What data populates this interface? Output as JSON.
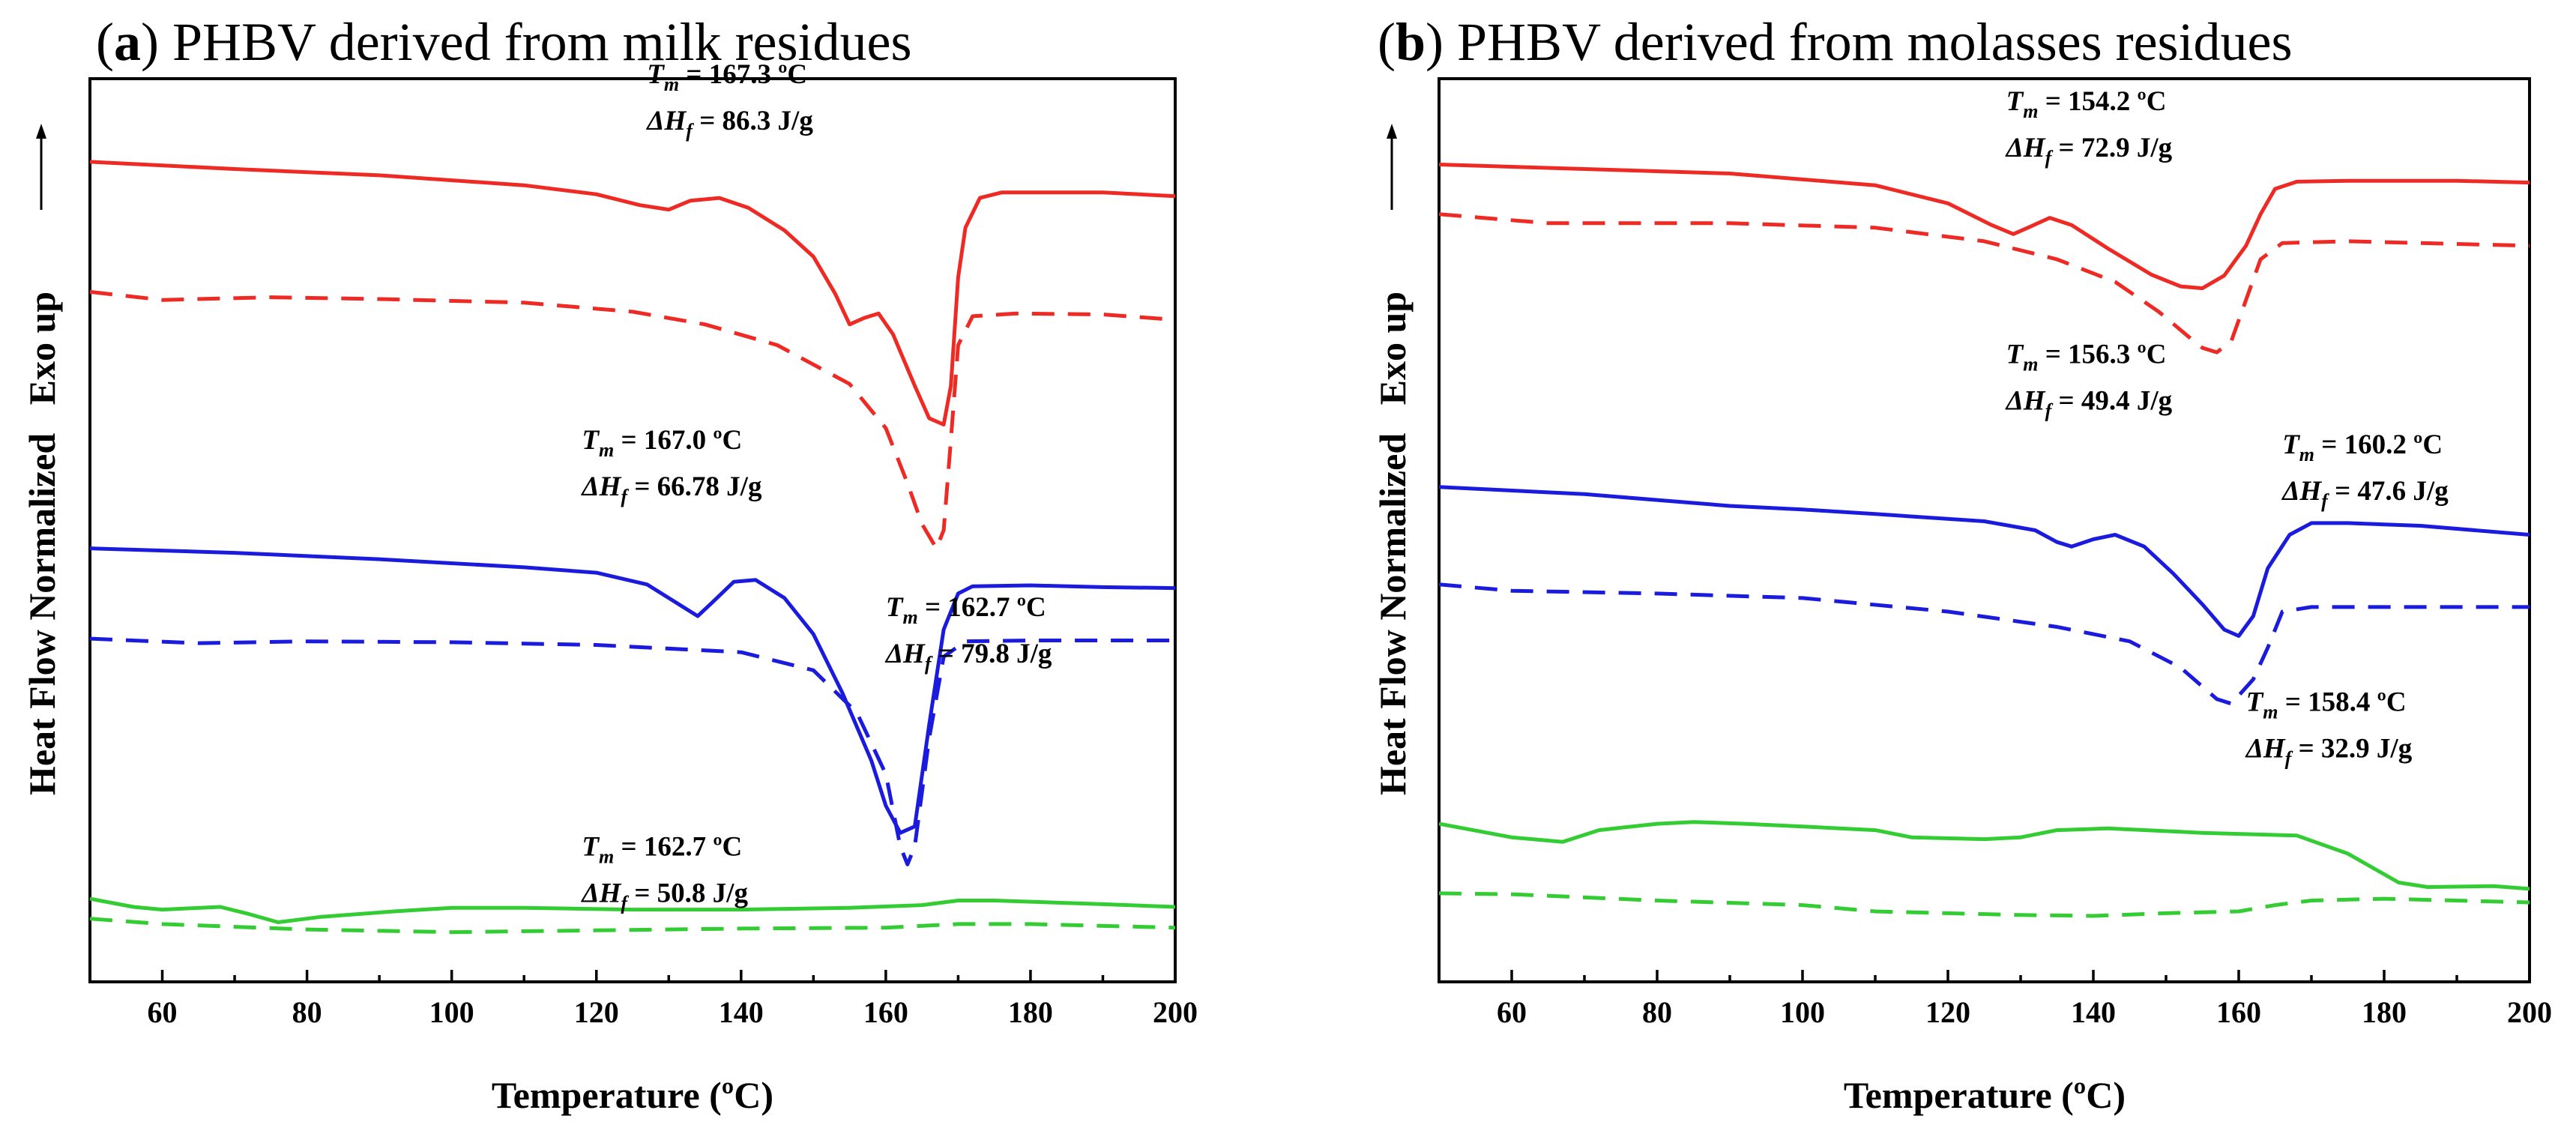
{
  "chart_data": [
    {
      "type": "line",
      "panel_letter": "a",
      "title_rest": ") PHBV derived from milk residues",
      "xlabel": "Temperature (ºC)",
      "ylabel": "Heat Flow Normalized   Exo up",
      "xlim": [
        50,
        200
      ],
      "ylim": [
        0,
        1
      ],
      "y_ticks_shown": false,
      "x_ticks": [
        60,
        80,
        100,
        120,
        140,
        160,
        180,
        200
      ],
      "colors": {
        "red": "#ee2a25",
        "blue": "#1b1bdd",
        "green": "#33cc33"
      },
      "series": [
        {
          "name": "red-solid",
          "color": "red",
          "dash": false,
          "points": [
            [
              50,
              0.908
            ],
            [
              70,
              0.9
            ],
            [
              90,
              0.893
            ],
            [
              110,
              0.882
            ],
            [
              120,
              0.872
            ],
            [
              126,
              0.86
            ],
            [
              130,
              0.855
            ],
            [
              133,
              0.865
            ],
            [
              137,
              0.868
            ],
            [
              141,
              0.857
            ],
            [
              146,
              0.832
            ],
            [
              150,
              0.803
            ],
            [
              153,
              0.762
            ],
            [
              155,
              0.728
            ],
            [
              157,
              0.735
            ],
            [
              159,
              0.74
            ],
            [
              161,
              0.717
            ],
            [
              164,
              0.66
            ],
            [
              166,
              0.624
            ],
            [
              168,
              0.617
            ],
            [
              169,
              0.66
            ],
            [
              170,
              0.78
            ],
            [
              171,
              0.835
            ],
            [
              173,
              0.868
            ],
            [
              176,
              0.874
            ],
            [
              190,
              0.874
            ],
            [
              200,
              0.87
            ]
          ]
        },
        {
          "name": "red-dashed",
          "color": "red",
          "dash": true,
          "points": [
            [
              50,
              0.764
            ],
            [
              60,
              0.755
            ],
            [
              75,
              0.758
            ],
            [
              90,
              0.756
            ],
            [
              110,
              0.752
            ],
            [
              125,
              0.742
            ],
            [
              135,
              0.728
            ],
            [
              145,
              0.705
            ],
            [
              155,
              0.662
            ],
            [
              160,
              0.613
            ],
            [
              163,
              0.552
            ],
            [
              165,
              0.507
            ],
            [
              167,
              0.48
            ],
            [
              168,
              0.5
            ],
            [
              169,
              0.6
            ],
            [
              170,
              0.705
            ],
            [
              172,
              0.737
            ],
            [
              178,
              0.74
            ],
            [
              190,
              0.739
            ],
            [
              200,
              0.733
            ]
          ]
        },
        {
          "name": "blue-solid",
          "color": "blue",
          "dash": false,
          "points": [
            [
              50,
              0.48
            ],
            [
              70,
              0.475
            ],
            [
              90,
              0.468
            ],
            [
              110,
              0.459
            ],
            [
              120,
              0.453
            ],
            [
              127,
              0.44
            ],
            [
              131,
              0.42
            ],
            [
              134,
              0.405
            ],
            [
              136,
              0.42
            ],
            [
              139,
              0.443
            ],
            [
              142,
              0.445
            ],
            [
              146,
              0.425
            ],
            [
              150,
              0.385
            ],
            [
              154,
              0.32
            ],
            [
              158,
              0.245
            ],
            [
              160,
              0.195
            ],
            [
              162,
              0.165
            ],
            [
              164,
              0.172
            ],
            [
              166,
              0.285
            ],
            [
              168,
              0.39
            ],
            [
              170,
              0.43
            ],
            [
              172,
              0.438
            ],
            [
              180,
              0.439
            ],
            [
              190,
              0.437
            ],
            [
              200,
              0.436
            ]
          ]
        },
        {
          "name": "blue-dashed",
          "color": "blue",
          "dash": true,
          "points": [
            [
              50,
              0.38
            ],
            [
              65,
              0.375
            ],
            [
              80,
              0.377
            ],
            [
              100,
              0.376
            ],
            [
              120,
              0.373
            ],
            [
              140,
              0.365
            ],
            [
              150,
              0.345
            ],
            [
              156,
              0.298
            ],
            [
              160,
              0.23
            ],
            [
              162,
              0.15
            ],
            [
              163,
              0.13
            ],
            [
              164,
              0.15
            ],
            [
              166,
              0.27
            ],
            [
              168,
              0.36
            ],
            [
              171,
              0.377
            ],
            [
              180,
              0.378
            ],
            [
              200,
              0.378
            ]
          ]
        },
        {
          "name": "green-solid",
          "color": "green",
          "dash": false,
          "points": [
            [
              50,
              0.092
            ],
            [
              56,
              0.083
            ],
            [
              60,
              0.08
            ],
            [
              68,
              0.083
            ],
            [
              72,
              0.075
            ],
            [
              76,
              0.066
            ],
            [
              82,
              0.072
            ],
            [
              92,
              0.078
            ],
            [
              100,
              0.082
            ],
            [
              110,
              0.082
            ],
            [
              125,
              0.08
            ],
            [
              140,
              0.08
            ],
            [
              155,
              0.082
            ],
            [
              165,
              0.085
            ],
            [
              170,
              0.09
            ],
            [
              175,
              0.09
            ],
            [
              190,
              0.086
            ],
            [
              200,
              0.083
            ]
          ]
        },
        {
          "name": "green-dashed",
          "color": "green",
          "dash": true,
          "points": [
            [
              50,
              0.07
            ],
            [
              60,
              0.064
            ],
            [
              80,
              0.058
            ],
            [
              100,
              0.055
            ],
            [
              120,
              0.057
            ],
            [
              140,
              0.059
            ],
            [
              160,
              0.06
            ],
            [
              170,
              0.064
            ],
            [
              180,
              0.064
            ],
            [
              200,
              0.06
            ]
          ]
        }
      ],
      "annotations": [
        {
          "tm_value": "= 167.3 ºC",
          "dh_value": "= 86.3 J/g",
          "x": 127,
          "y": 0.995
        },
        {
          "tm_value": "= 167.0 ºC",
          "dh_value": "= 66.78 J/g",
          "x": 118,
          "y": 0.59
        },
        {
          "tm_value": "= 162.7 ºC",
          "dh_value": "= 79.8 J/g",
          "x": 160,
          "y": 0.405
        },
        {
          "tm_value": "= 162.7 ºC",
          "dh_value": "= 50.8 J/g",
          "x": 118,
          "y": 0.14
        }
      ]
    },
    {
      "type": "line",
      "panel_letter": "b",
      "title_rest": ") PHBV derived from molasses residues",
      "xlabel": "Temperature (ºC)",
      "ylabel": "Heat Flow Normalized   Exo up",
      "xlim": [
        50,
        200
      ],
      "ylim": [
        0,
        1
      ],
      "y_ticks_shown": false,
      "x_ticks": [
        60,
        80,
        100,
        120,
        140,
        160,
        180,
        200
      ],
      "colors": {
        "red": "#ee2a25",
        "blue": "#1b1bdd",
        "green": "#33cc33"
      },
      "series": [
        {
          "name": "red-solid",
          "color": "red",
          "dash": false,
          "points": [
            [
              50,
              0.905
            ],
            [
              70,
              0.9
            ],
            [
              90,
              0.895
            ],
            [
              110,
              0.882
            ],
            [
              120,
              0.862
            ],
            [
              126,
              0.838
            ],
            [
              129,
              0.828
            ],
            [
              131,
              0.835
            ],
            [
              134,
              0.846
            ],
            [
              137,
              0.838
            ],
            [
              142,
              0.812
            ],
            [
              148,
              0.783
            ],
            [
              152,
              0.77
            ],
            [
              155,
              0.768
            ],
            [
              158,
              0.782
            ],
            [
              161,
              0.815
            ],
            [
              163,
              0.85
            ],
            [
              165,
              0.878
            ],
            [
              168,
              0.886
            ],
            [
              175,
              0.887
            ],
            [
              190,
              0.887
            ],
            [
              200,
              0.885
            ]
          ]
        },
        {
          "name": "red-dashed",
          "color": "red",
          "dash": true,
          "points": [
            [
              50,
              0.85
            ],
            [
              65,
              0.84
            ],
            [
              90,
              0.84
            ],
            [
              110,
              0.835
            ],
            [
              125,
              0.82
            ],
            [
              135,
              0.8
            ],
            [
              143,
              0.775
            ],
            [
              149,
              0.742
            ],
            [
              153,
              0.715
            ],
            [
              155,
              0.702
            ],
            [
              157,
              0.697
            ],
            [
              159,
              0.71
            ],
            [
              161,
              0.755
            ],
            [
              163,
              0.8
            ],
            [
              166,
              0.818
            ],
            [
              175,
              0.82
            ],
            [
              190,
              0.817
            ],
            [
              200,
              0.815
            ]
          ]
        },
        {
          "name": "blue-solid",
          "color": "blue",
          "dash": false,
          "points": [
            [
              50,
              0.548
            ],
            [
              70,
              0.54
            ],
            [
              90,
              0.527
            ],
            [
              100,
              0.523
            ],
            [
              110,
              0.518
            ],
            [
              125,
              0.51
            ],
            [
              132,
              0.5
            ],
            [
              135,
              0.487
            ],
            [
              137,
              0.482
            ],
            [
              140,
              0.49
            ],
            [
              143,
              0.495
            ],
            [
              147,
              0.482
            ],
            [
              151,
              0.452
            ],
            [
              155,
              0.418
            ],
            [
              158,
              0.39
            ],
            [
              160,
              0.383
            ],
            [
              162,
              0.405
            ],
            [
              164,
              0.458
            ],
            [
              167,
              0.495
            ],
            [
              170,
              0.508
            ],
            [
              175,
              0.508
            ],
            [
              185,
              0.505
            ],
            [
              200,
              0.495
            ]
          ]
        },
        {
          "name": "blue-dashed",
          "color": "blue",
          "dash": true,
          "points": [
            [
              50,
              0.44
            ],
            [
              60,
              0.433
            ],
            [
              80,
              0.43
            ],
            [
              100,
              0.425
            ],
            [
              120,
              0.41
            ],
            [
              135,
              0.393
            ],
            [
              145,
              0.377
            ],
            [
              152,
              0.348
            ],
            [
              157,
              0.313
            ],
            [
              159,
              0.308
            ],
            [
              162,
              0.335
            ],
            [
              164,
              0.37
            ],
            [
              166,
              0.41
            ],
            [
              170,
              0.415
            ],
            [
              180,
              0.415
            ],
            [
              200,
              0.415
            ]
          ]
        },
        {
          "name": "green-solid",
          "color": "green",
          "dash": false,
          "points": [
            [
              50,
              0.175
            ],
            [
              60,
              0.16
            ],
            [
              67,
              0.155
            ],
            [
              72,
              0.168
            ],
            [
              80,
              0.175
            ],
            [
              85,
              0.177
            ],
            [
              92,
              0.175
            ],
            [
              100,
              0.172
            ],
            [
              110,
              0.168
            ],
            [
              115,
              0.16
            ],
            [
              125,
              0.158
            ],
            [
              130,
              0.16
            ],
            [
              135,
              0.168
            ],
            [
              142,
              0.17
            ],
            [
              155,
              0.165
            ],
            [
              168,
              0.162
            ],
            [
              175,
              0.142
            ],
            [
              182,
              0.11
            ],
            [
              186,
              0.105
            ],
            [
              195,
              0.106
            ],
            [
              200,
              0.103
            ]
          ]
        },
        {
          "name": "green-dashed",
          "color": "green",
          "dash": true,
          "points": [
            [
              50,
              0.098
            ],
            [
              60,
              0.097
            ],
            [
              80,
              0.09
            ],
            [
              100,
              0.085
            ],
            [
              110,
              0.078
            ],
            [
              130,
              0.074
            ],
            [
              140,
              0.073
            ],
            [
              150,
              0.076
            ],
            [
              160,
              0.078
            ],
            [
              165,
              0.085
            ],
            [
              170,
              0.09
            ],
            [
              180,
              0.092
            ],
            [
              200,
              0.088
            ]
          ]
        }
      ],
      "annotations": [
        {
          "tm_value": "= 154.2 ºC",
          "dh_value": "= 72.9 J/g",
          "x": 128,
          "y": 0.965
        },
        {
          "tm_value": "= 156.3 ºC",
          "dh_value": "= 49.4 J/g",
          "x": 128,
          "y": 0.685
        },
        {
          "tm_value": "= 160.2 ºC",
          "dh_value": "= 47.6 J/g",
          "x": 166,
          "y": 0.585
        },
        {
          "tm_value": "= 158.4 ºC",
          "dh_value": "= 32.9 J/g",
          "x": 161,
          "y": 0.3
        }
      ]
    }
  ]
}
